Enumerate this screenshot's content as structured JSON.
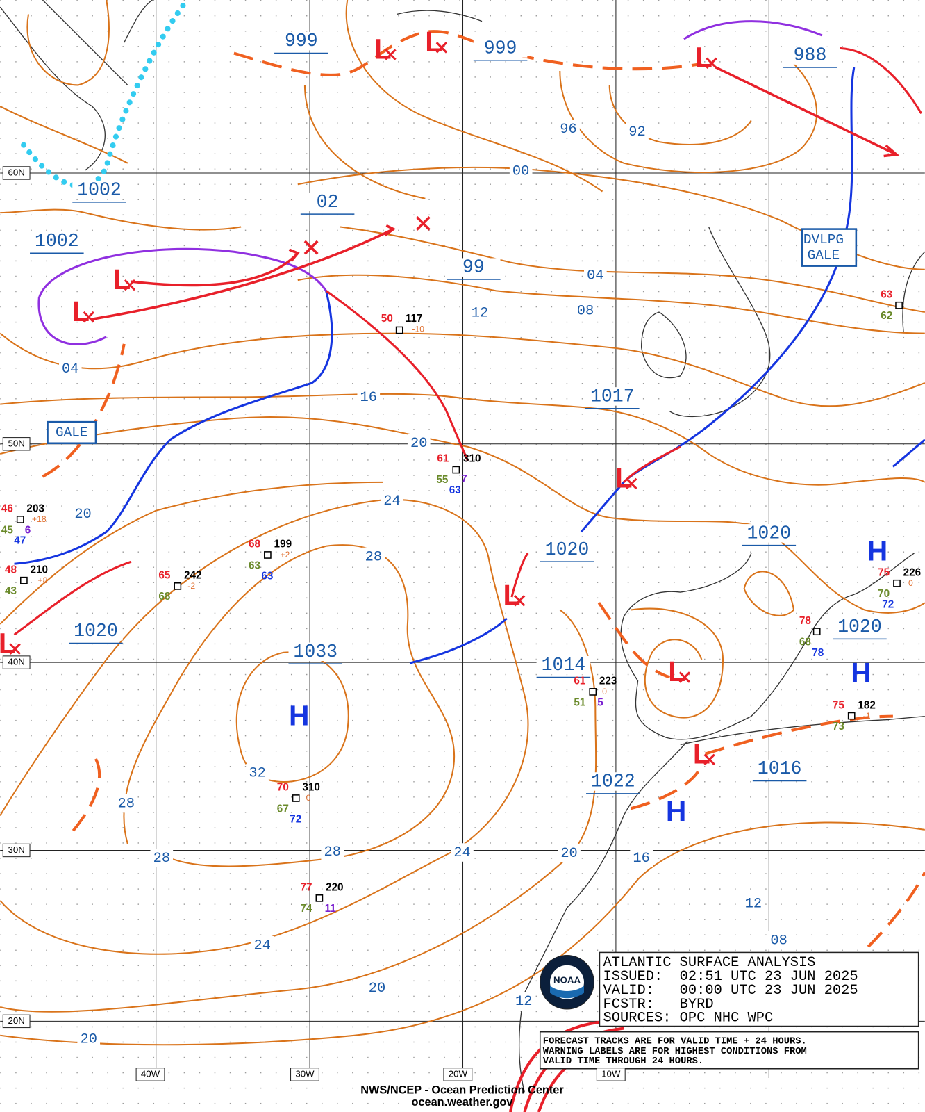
{
  "map": {
    "lat_labels": [
      "60N",
      "50N",
      "40N",
      "30N",
      "20N"
    ],
    "lon_labels": [
      "40W",
      "30W",
      "20W",
      "10W"
    ],
    "isobar_labels": [
      "999",
      "999",
      "988",
      "1002",
      "02",
      "1002",
      "99",
      "04",
      "08",
      "12",
      "04",
      "16",
      "1017",
      "20",
      "24",
      "20",
      "1020",
      "1020",
      "28",
      "1020",
      "1020",
      "1033",
      "1014",
      "32",
      "1022",
      "1016",
      "28",
      "28",
      "28",
      "24",
      "20",
      "16",
      "12",
      "08",
      "24",
      "20",
      "12",
      "20",
      "00",
      "96",
      "92"
    ],
    "centers": [
      "L",
      "L",
      "L",
      "L",
      "L",
      "L",
      "L",
      "L",
      "L",
      "L",
      "H",
      "H",
      "H",
      "H"
    ],
    "warnings": [
      [
        "GALE"
      ],
      [
        "DVLPG",
        "GALE"
      ]
    ],
    "stations": [
      [
        "50",
        "117",
        "-10"
      ],
      [
        "61",
        "310",
        "55",
        "63",
        "7"
      ],
      [
        "46",
        "203",
        "+18",
        "45",
        "6",
        "47"
      ],
      [
        "48",
        "210",
        "+8",
        "43"
      ],
      [
        "65",
        "242",
        "-2",
        "68"
      ],
      [
        "68",
        "199",
        "+2",
        "63",
        "63"
      ],
      [
        "70",
        "310",
        "0",
        "67",
        "72"
      ],
      [
        "77",
        "220",
        "74",
        "11"
      ],
      [
        "61",
        "223",
        "0",
        "51",
        "5"
      ],
      [
        "78",
        "68",
        "78"
      ],
      [
        "75",
        "182",
        "-1",
        "73"
      ],
      [
        "75",
        "226",
        "0",
        "70",
        "72"
      ],
      [
        "63",
        "62"
      ]
    ],
    "info": [
      "ATLANTIC SURFACE ANALYSIS",
      "ISSUED:  02:51 UTC 23 JUN 2025",
      "VALID:   00:00 UTC 23 JUN 2025",
      "FCSTR:   BYRD",
      "SOURCES: OPC NHC WPC"
    ],
    "notes": [
      "FORECAST TRACKS ARE FOR VALID TIME + 24 HOURS.",
      "WARNING LABELS ARE FOR HIGHEST CONDITIONS FROM",
      "VALID TIME THROUGH 24 HOURS."
    ],
    "logo": "NOAA",
    "footer": [
      "NWS/NCEP - Ocean Prediction Center",
      "ocean.weather.gov"
    ]
  }
}
